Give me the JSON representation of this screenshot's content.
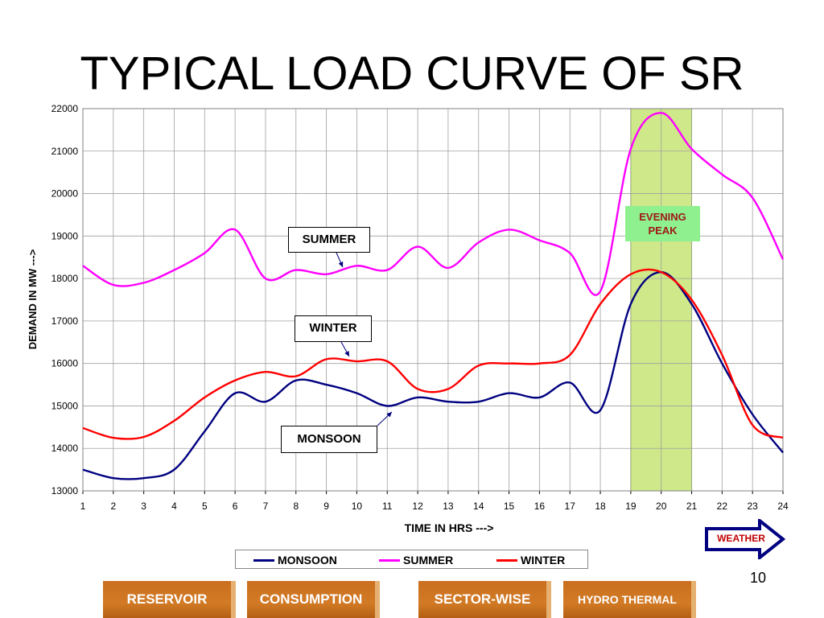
{
  "slide": {
    "title": "TYPICAL LOAD CURVE OF SR",
    "page_number": "10"
  },
  "chart_data": {
    "type": "line",
    "x": [
      1,
      2,
      3,
      4,
      5,
      6,
      7,
      8,
      9,
      10,
      11,
      12,
      13,
      14,
      15,
      16,
      17,
      18,
      19,
      20,
      21,
      22,
      23,
      24
    ],
    "xlabel": "TIME IN HRS --->",
    "ylabel": "DEMAND IN MW --->",
    "ylim": [
      13000,
      22000
    ],
    "xlim": [
      1,
      24
    ],
    "yticks": [
      13000,
      14000,
      15000,
      16000,
      17000,
      18000,
      19000,
      20000,
      21000,
      22000
    ],
    "grid": true,
    "series": [
      {
        "name": "MONSOON",
        "color": "#000080",
        "values": [
          13500,
          13300,
          13300,
          13500,
          14400,
          15300,
          15100,
          15600,
          15500,
          15300,
          15000,
          15200,
          15100,
          15100,
          15300,
          15200,
          15550,
          14900,
          17400,
          18150,
          17400,
          16000,
          14800,
          13900
        ]
      },
      {
        "name": "SUMMER",
        "color": "#ff00ff",
        "values": [
          18300,
          17850,
          17900,
          18200,
          18600,
          19150,
          18000,
          18200,
          18100,
          18300,
          18200,
          18750,
          18250,
          18850,
          19150,
          18900,
          18600,
          17700,
          21050,
          21900,
          21050,
          20450,
          19900,
          18450
        ]
      },
      {
        "name": "WINTER",
        "color": "#ff0000",
        "values": [
          14480,
          14250,
          14270,
          14650,
          15200,
          15600,
          15800,
          15700,
          16100,
          16050,
          16050,
          15400,
          15400,
          15950,
          16000,
          16000,
          16200,
          17400,
          18100,
          18150,
          17500,
          16200,
          14550,
          14250
        ]
      }
    ],
    "highlight": {
      "x_from": 19,
      "x_to": 21,
      "label": "EVENING PEAK",
      "color": "#cfe88a"
    },
    "annotations": [
      {
        "text": "SUMMER",
        "series": "SUMMER"
      },
      {
        "text": "WINTER",
        "series": "WINTER"
      },
      {
        "text": "MONSOON",
        "series": "MONSOON"
      }
    ],
    "legend_position": "bottom"
  },
  "weather_button": {
    "label": "WEATHER",
    "color": "#000080"
  },
  "nav_buttons": [
    {
      "label": "RESERVOIR"
    },
    {
      "label": "CONSUMPTION"
    },
    {
      "label": "SECTOR-WISE"
    },
    {
      "label": "HYDRO THERMAL"
    }
  ]
}
